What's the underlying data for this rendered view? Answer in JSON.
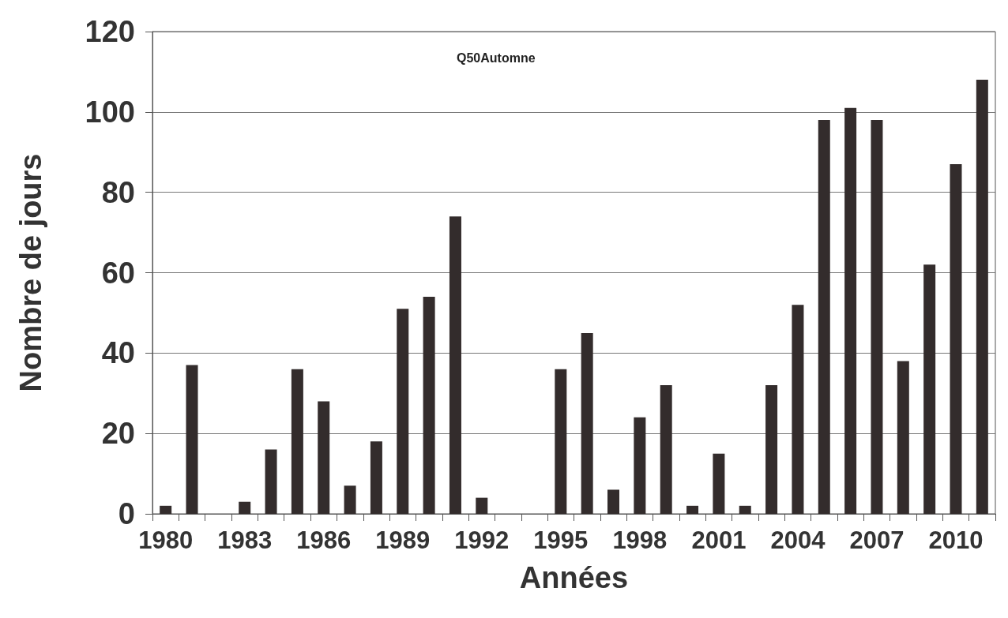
{
  "chart_data": {
    "type": "bar",
    "title": "Q50Automne",
    "xlabel": "Années",
    "ylabel": "Nombre de jours",
    "categories": [
      "1980",
      null,
      null,
      "1983",
      null,
      null,
      "1986",
      null,
      null,
      "1989",
      null,
      null,
      "1992",
      null,
      null,
      "1995",
      null,
      null,
      "1998",
      null,
      null,
      "2001",
      null,
      null,
      "2004",
      null,
      null,
      "2007",
      null,
      null,
      "2010",
      null
    ],
    "values": [
      2,
      37,
      0,
      3,
      16,
      36,
      28,
      7,
      18,
      51,
      54,
      74,
      4,
      0,
      0,
      36,
      45,
      6,
      24,
      32,
      2,
      15,
      2,
      32,
      52,
      98,
      101,
      98,
      38,
      62,
      87,
      108
    ],
    "color": "#332c2c",
    "ylim": [
      0,
      120
    ],
    "yticks": [
      0,
      20,
      40,
      60,
      80,
      100,
      120
    ],
    "grid": "y"
  }
}
